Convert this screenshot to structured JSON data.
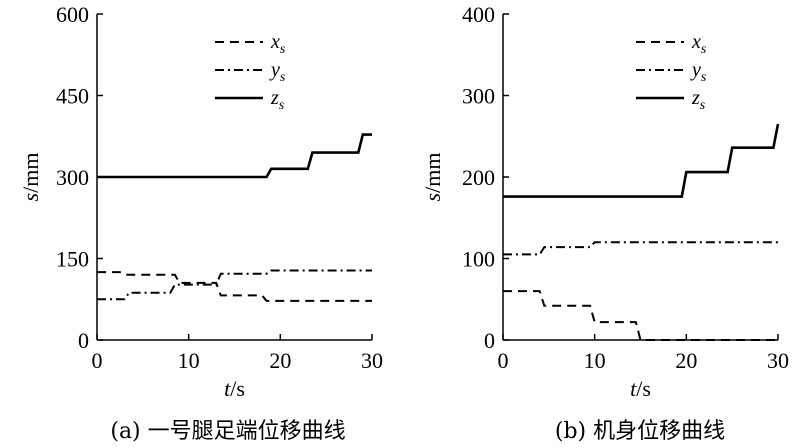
{
  "chart_data": [
    {
      "type": "line",
      "caption": "(a) 一号腿足端位移曲线",
      "xlabel": {
        "var": "t",
        "unit": "/s"
      },
      "ylabel": {
        "var": "s",
        "unit": "/mm"
      },
      "xlim": [
        0,
        30
      ],
      "ylim": [
        0,
        600
      ],
      "xticks": [
        "0",
        "10",
        "20",
        "30"
      ],
      "yticks": [
        "0",
        "150",
        "300",
        "450",
        "600"
      ],
      "legend_position": "top-center",
      "series": [
        {
          "name": "x",
          "sub": "s",
          "style": "dashed",
          "points": [
            [
              0,
              125
            ],
            [
              2.5,
              125
            ],
            [
              3,
              120
            ],
            [
              8.5,
              120
            ],
            [
              9,
              105
            ],
            [
              13,
              105
            ],
            [
              13.5,
              82
            ],
            [
              18,
              82
            ],
            [
              18.5,
              72
            ],
            [
              30,
              72
            ]
          ]
        },
        {
          "name": "y",
          "sub": "s",
          "style": "dashdot",
          "points": [
            [
              0,
              75
            ],
            [
              3,
              75
            ],
            [
              3.5,
              87
            ],
            [
              8,
              87
            ],
            [
              8.5,
              102
            ],
            [
              13,
              102
            ],
            [
              13.5,
              122
            ],
            [
              18.5,
              122
            ],
            [
              19,
              128
            ],
            [
              30,
              128
            ]
          ]
        },
        {
          "name": "z",
          "sub": "s",
          "style": "solid",
          "points": [
            [
              0,
              300
            ],
            [
              18.5,
              300
            ],
            [
              19,
              315
            ],
            [
              23,
              315
            ],
            [
              23.5,
              345
            ],
            [
              28.5,
              345
            ],
            [
              29,
              378
            ],
            [
              30,
              378
            ]
          ]
        }
      ]
    },
    {
      "type": "line",
      "caption": "(b) 机身位移曲线",
      "xlabel": {
        "var": "t",
        "unit": "/s"
      },
      "ylabel": {
        "var": "s",
        "unit": "/mm"
      },
      "xlim": [
        0,
        30
      ],
      "ylim": [
        0,
        400
      ],
      "xticks": [
        "0",
        "10",
        "20",
        "30"
      ],
      "yticks": [
        "0",
        "100",
        "200",
        "300",
        "400"
      ],
      "legend_position": "top-center",
      "series": [
        {
          "name": "x",
          "sub": "s",
          "style": "dashed",
          "points": [
            [
              0,
              60
            ],
            [
              4,
              60
            ],
            [
              4.5,
              42
            ],
            [
              9.5,
              42
            ],
            [
              10,
              22
            ],
            [
              14.5,
              22
            ],
            [
              15,
              0
            ],
            [
              30,
              0
            ]
          ]
        },
        {
          "name": "y",
          "sub": "s",
          "style": "dashdot",
          "points": [
            [
              0,
              105
            ],
            [
              4,
              105
            ],
            [
              4.5,
              114
            ],
            [
              9.5,
              114
            ],
            [
              10,
              120
            ],
            [
              30,
              120
            ]
          ]
        },
        {
          "name": "z",
          "sub": "s",
          "style": "solid",
          "points": [
            [
              0,
              176
            ],
            [
              19.5,
              176
            ],
            [
              20,
              206
            ],
            [
              24.5,
              206
            ],
            [
              25,
              236
            ],
            [
              29.5,
              236
            ],
            [
              30,
              265
            ]
          ]
        }
      ]
    }
  ]
}
